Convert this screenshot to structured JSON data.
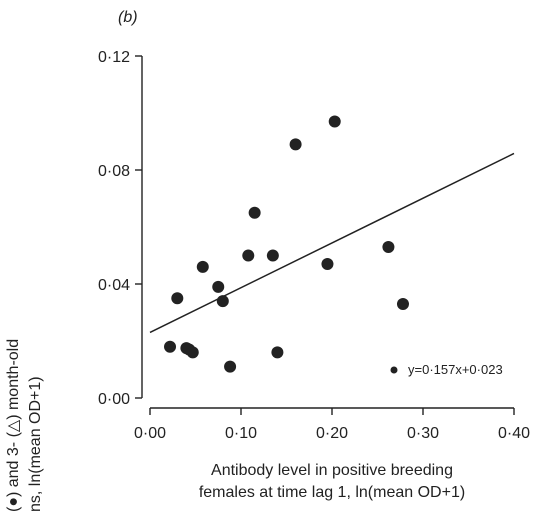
{
  "chart_data": {
    "type": "scatter",
    "panel_label": "(b)",
    "title": "",
    "xlabel_lines": [
      "Antibody level in positive breeding",
      "females at time lag 1, ln(mean OD+1)"
    ],
    "ylabel_lines": [
      "(●) and 3- (△) month-old",
      "ns, ln(mean OD+1)"
    ],
    "xlim": [
      0,
      0.4
    ],
    "ylim": [
      0,
      0.12
    ],
    "x_ticks": [
      0,
      0.1,
      0.2,
      0.3,
      0.4
    ],
    "x_tick_labels": [
      "0·00",
      "0·10",
      "0·20",
      "0·30",
      "0·40"
    ],
    "y_ticks": [
      0,
      0.04,
      0.08,
      0.12
    ],
    "y_tick_labels": [
      "0·00",
      "0·04",
      "0·08",
      "0·12"
    ],
    "grid": false,
    "legend_position": "bottom-right",
    "series": [
      {
        "marker": "filled-circle",
        "color": "#222222",
        "x": [
          0.022,
          0.03,
          0.04,
          0.043,
          0.047,
          0.058,
          0.075,
          0.08,
          0.088,
          0.108,
          0.115,
          0.135,
          0.14,
          0.16,
          0.195,
          0.203,
          0.262,
          0.278
        ],
        "y": [
          0.018,
          0.035,
          0.0175,
          0.017,
          0.016,
          0.046,
          0.039,
          0.034,
          0.011,
          0.05,
          0.065,
          0.05,
          0.016,
          0.089,
          0.047,
          0.097,
          0.053,
          0.033
        ]
      }
    ],
    "fit_line": {
      "slope": 0.157,
      "intercept": 0.023,
      "x_range": [
        0,
        0.4
      ],
      "color": "#222222"
    },
    "legend": {
      "entries": [
        {
          "marker": "filled-circle",
          "label": "y=0·157x+0·023"
        }
      ]
    }
  }
}
